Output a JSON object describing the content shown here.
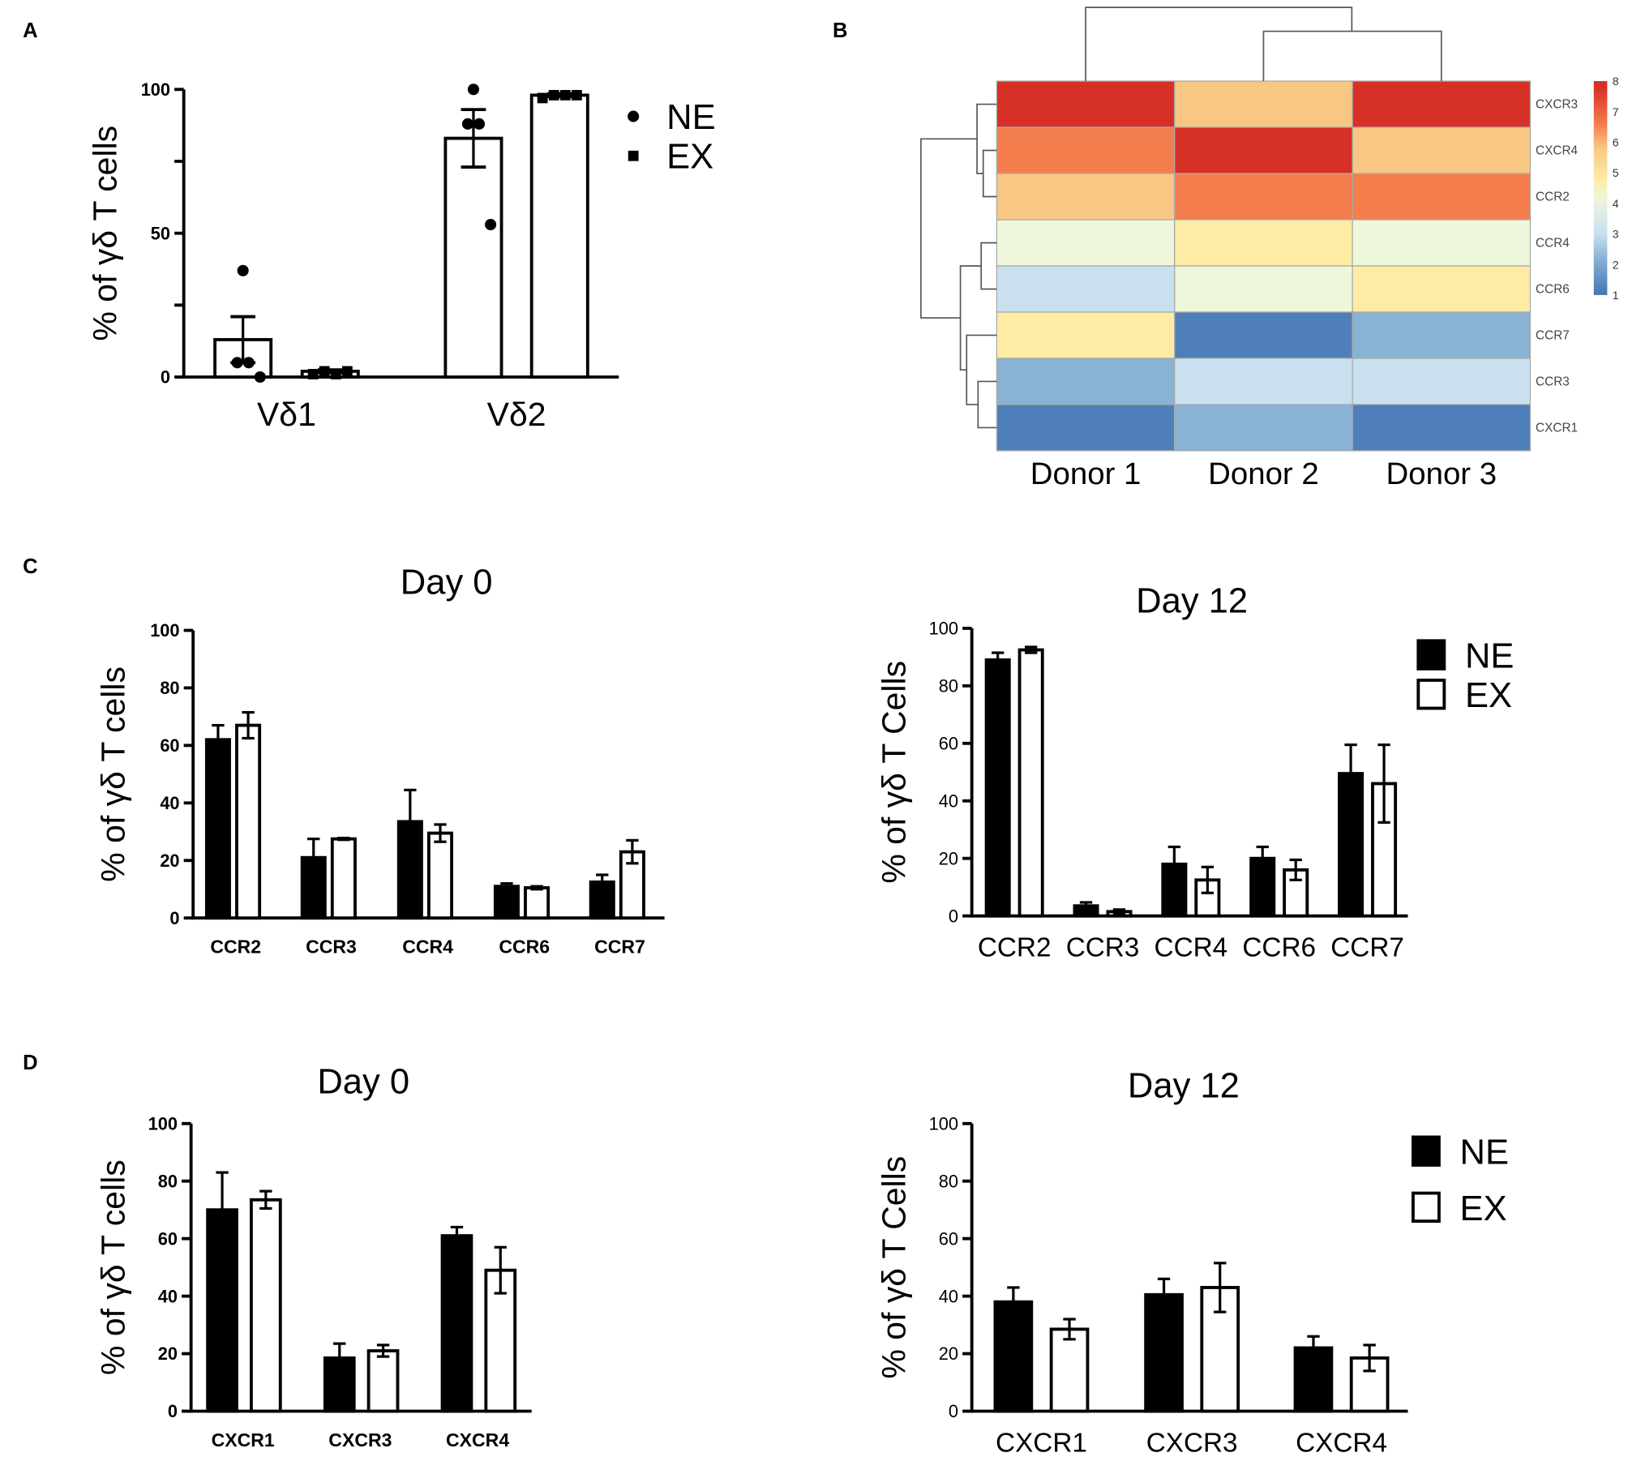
{
  "panel_labels": [
    "A",
    "B",
    "C",
    "D"
  ],
  "chart_data": [
    {
      "id": "A",
      "type": "bar",
      "title": "",
      "ylabel": "% of γδ T cells",
      "ylim": [
        0,
        100
      ],
      "yticks": [
        0,
        50,
        100
      ],
      "minor_ticks": [
        25,
        75
      ],
      "categories": [
        "Vδ1",
        "Vδ2"
      ],
      "legend": {
        "placement": "right",
        "entries": [
          {
            "label": "NE",
            "marker": "circle"
          },
          {
            "label": "EX",
            "marker": "square"
          }
        ]
      },
      "series": [
        {
          "name": "NE",
          "values": [
            13,
            83
          ],
          "errors": [
            8,
            10
          ],
          "points": [
            [
              37,
              5,
              5,
              0
            ],
            [
              100,
              88,
              88,
              53
            ]
          ]
        },
        {
          "name": "EX",
          "values": [
            2,
            98
          ],
          "errors": [
            0.5,
            0.5
          ],
          "points": [
            [
              1,
              2,
              1,
              2
            ],
            [
              97,
              98,
              98,
              98
            ]
          ]
        }
      ]
    },
    {
      "id": "B",
      "type": "heatmap",
      "columns": [
        "Donor 1",
        "Donor 2",
        "Donor 3"
      ],
      "rows": [
        "CXCR3",
        "CXCR4",
        "CCR2",
        "CCR4",
        "CCR6",
        "CCR7",
        "CCR3",
        "CXCR1"
      ],
      "values": [
        [
          7.8,
          5.8,
          7.8
        ],
        [
          6.6,
          7.8,
          5.8
        ],
        [
          5.8,
          6.6,
          6.6
        ],
        [
          4.2,
          4.8,
          4.2
        ],
        [
          3.0,
          4.2,
          4.8
        ],
        [
          4.8,
          1.2,
          2.2
        ],
        [
          2.2,
          3.0,
          3.0
        ],
        [
          1.2,
          2.2,
          1.2
        ]
      ],
      "colorbar": {
        "range": [
          1,
          8
        ],
        "ticks": [
          "1",
          "2",
          "3",
          "4",
          "5",
          "6",
          "7",
          "8"
        ]
      },
      "color_stops": [
        [
          1,
          "#4474b5"
        ],
        [
          2.2,
          "#88b3d5"
        ],
        [
          3.0,
          "#c9e1ef"
        ],
        [
          4.2,
          "#eef7d9"
        ],
        [
          4.8,
          "#feeca5"
        ],
        [
          5.8,
          "#f9c784"
        ],
        [
          6.6,
          "#f47d4d"
        ],
        [
          7.8,
          "#d73027"
        ]
      ],
      "dendrogram_rows": true,
      "dendrogram_cols": true
    },
    {
      "id": "C-day0",
      "type": "bar",
      "title": "Day 0",
      "ylabel": "% of γδ T cells",
      "ylim": [
        0,
        100
      ],
      "yticks": [
        0,
        20,
        40,
        60,
        80,
        100
      ],
      "categories": [
        "CCR2",
        "CCR3",
        "CCR4",
        "CCR6",
        "CCR7"
      ],
      "series": [
        {
          "name": "NE",
          "values": [
            62,
            21,
            33.5,
            11,
            12.5
          ],
          "errors": [
            5,
            6.5,
            11,
            1,
            2.5
          ]
        },
        {
          "name": "EX",
          "values": [
            67,
            27.5,
            29.5,
            10.5,
            23
          ],
          "errors": [
            4.5,
            0.3,
            3,
            0.5,
            4
          ]
        }
      ]
    },
    {
      "id": "C-day12",
      "type": "bar",
      "title": "Day 12",
      "ylabel": "% of γδ T Cells",
      "ylim": [
        0,
        100
      ],
      "yticks": [
        0,
        20,
        40,
        60,
        80,
        100
      ],
      "categories": [
        "CCR2",
        "CCR3",
        "CCR4",
        "CCR6",
        "CCR7"
      ],
      "legend": {
        "placement": "top-right",
        "entries": [
          {
            "label": "NE",
            "marker": "filled"
          },
          {
            "label": "EX",
            "marker": "open"
          }
        ]
      },
      "series": [
        {
          "name": "NE",
          "values": [
            89,
            3.5,
            18,
            20,
            49.5
          ],
          "errors": [
            2.5,
            1.2,
            6,
            4,
            10
          ]
        },
        {
          "name": "EX",
          "values": [
            92.5,
            1.5,
            12.5,
            16,
            46
          ],
          "errors": [
            1,
            0.7,
            4.5,
            3.5,
            13.5
          ]
        }
      ]
    },
    {
      "id": "D-day0",
      "type": "bar",
      "title": "Day 0",
      "ylabel": "% of γδ T cells",
      "ylim": [
        0,
        100
      ],
      "yticks": [
        0,
        20,
        40,
        60,
        80,
        100
      ],
      "categories": [
        "CXCR1",
        "CXCR3",
        "CXCR4"
      ],
      "series": [
        {
          "name": "NE",
          "values": [
            70,
            18.5,
            61
          ],
          "errors": [
            13,
            5,
            3
          ]
        },
        {
          "name": "EX",
          "values": [
            73.5,
            21,
            49
          ],
          "errors": [
            3,
            2,
            8
          ]
        }
      ]
    },
    {
      "id": "D-day12",
      "type": "bar",
      "title": "Day 12",
      "ylabel": "% of γδ T Cells",
      "ylim": [
        0,
        100
      ],
      "yticks": [
        0,
        20,
        40,
        60,
        80,
        100
      ],
      "categories": [
        "CXCR1",
        "CXCR3",
        "CXCR4"
      ],
      "legend": {
        "placement": "top-right",
        "entries": [
          {
            "label": "NE",
            "marker": "filled"
          },
          {
            "label": "EX",
            "marker": "open"
          }
        ]
      },
      "series": [
        {
          "name": "NE",
          "values": [
            38,
            40.5,
            22
          ],
          "errors": [
            5,
            5.5,
            4
          ]
        },
        {
          "name": "EX",
          "values": [
            28.5,
            43,
            18.5
          ],
          "errors": [
            3.5,
            8.5,
            4.5
          ]
        }
      ]
    }
  ]
}
